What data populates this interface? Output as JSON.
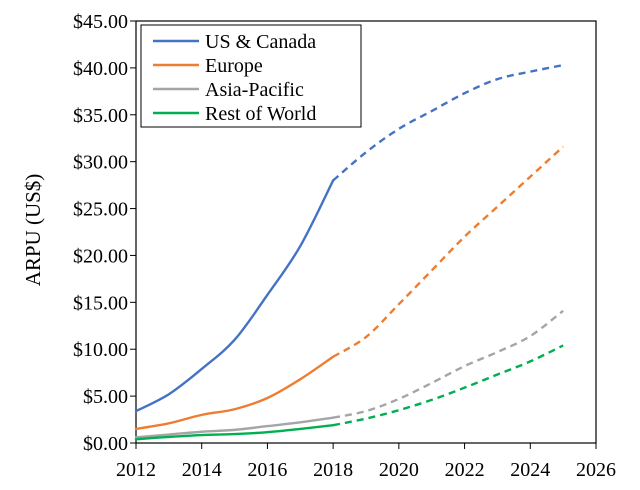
{
  "chart_data": {
    "type": "line",
    "title": "",
    "xlabel": "",
    "ylabel": "ARPU (US$)",
    "xlim": [
      2012,
      2026
    ],
    "ylim": [
      0,
      45
    ],
    "x_ticks": [
      2012,
      2014,
      2016,
      2018,
      2020,
      2022,
      2024,
      2026
    ],
    "x_tick_labels": [
      "2012",
      "2014",
      "2016",
      "2018",
      "2020",
      "2022",
      "2024",
      "2026"
    ],
    "y_ticks": [
      0,
      5,
      10,
      15,
      20,
      25,
      30,
      35,
      40,
      45
    ],
    "y_tick_labels": [
      "$0.00",
      "$5.00",
      "$10.00",
      "$15.00",
      "$20.00",
      "$25.00",
      "$30.00",
      "$35.00",
      "$40.00",
      "$45.00"
    ],
    "grid": false,
    "legend_position": "top-left",
    "series": [
      {
        "name": "US & Canada",
        "color": "#4472C4",
        "actual": {
          "x": [
            2012,
            2013,
            2014,
            2015,
            2016,
            2017,
            2018
          ],
          "y": [
            3.4,
            5.2,
            7.9,
            11.0,
            15.8,
            21.0,
            28.0
          ]
        },
        "forecast": {
          "x": [
            2018,
            2019,
            2020,
            2021,
            2022,
            2023,
            2024,
            2025
          ],
          "y": [
            28.0,
            31.0,
            33.5,
            35.4,
            37.3,
            38.8,
            39.6,
            40.3
          ]
        }
      },
      {
        "name": "Europe",
        "color": "#ED7D31",
        "actual": {
          "x": [
            2012,
            2013,
            2014,
            2015,
            2016,
            2017,
            2018
          ],
          "y": [
            1.5,
            2.1,
            3.0,
            3.6,
            4.8,
            6.8,
            9.2
          ]
        },
        "forecast": {
          "x": [
            2018,
            2019,
            2020,
            2021,
            2022,
            2023,
            2024,
            2025
          ],
          "y": [
            9.2,
            11.3,
            14.8,
            18.4,
            22.0,
            25.2,
            28.4,
            31.6
          ]
        }
      },
      {
        "name": "Asia-Pacific",
        "color": "#A5A5A5",
        "actual": {
          "x": [
            2012,
            2013,
            2014,
            2015,
            2016,
            2017,
            2018
          ],
          "y": [
            0.6,
            0.9,
            1.2,
            1.4,
            1.8,
            2.2,
            2.7
          ]
        },
        "forecast": {
          "x": [
            2018,
            2019,
            2020,
            2021,
            2022,
            2023,
            2024,
            2025
          ],
          "y": [
            2.7,
            3.4,
            4.7,
            6.4,
            8.2,
            9.7,
            11.4,
            14.1
          ]
        }
      },
      {
        "name": "Rest of World",
        "color": "#00B050",
        "actual": {
          "x": [
            2012,
            2013,
            2014,
            2015,
            2016,
            2017,
            2018
          ],
          "y": [
            0.4,
            0.65,
            0.85,
            0.95,
            1.15,
            1.5,
            1.9
          ]
        },
        "forecast": {
          "x": [
            2018,
            2019,
            2020,
            2021,
            2022,
            2023,
            2024,
            2025
          ],
          "y": [
            1.9,
            2.6,
            3.5,
            4.6,
            5.9,
            7.3,
            8.7,
            10.4
          ]
        }
      }
    ]
  }
}
